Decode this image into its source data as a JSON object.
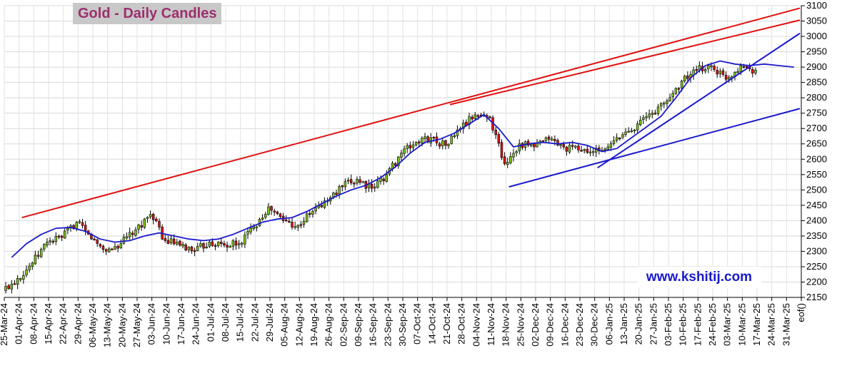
{
  "chart_data": {
    "type": "candlestick",
    "title": "Gold - Daily Candles",
    "watermark": "www.kshitij.com",
    "y_axis": {
      "position": "right",
      "min": 2150,
      "max": 3100,
      "step": 50,
      "ticks": [
        2150,
        2200,
        2250,
        2300,
        2350,
        2400,
        2450,
        2500,
        2550,
        2600,
        2650,
        2700,
        2750,
        2800,
        2850,
        2900,
        2950,
        3000,
        3050,
        3100
      ]
    },
    "x_axis": {
      "labels": [
        "25-Mar-24",
        "01-Apr-24",
        "08-Apr-24",
        "15-Apr-24",
        "22-Apr-24",
        "29-Apr-24",
        "06-May-24",
        "13-May-24",
        "20-May-24",
        "27-May-24",
        "03-Jun-24",
        "10-Jun-24",
        "17-Jun-24",
        "24-Jun-24",
        "01-Jul-24",
        "08-Jul-24",
        "15-Jul-24",
        "22-Jul-24",
        "29-Jul-24",
        "05-Aug-24",
        "12-Aug-24",
        "19-Aug-24",
        "26-Aug-24",
        "02-Sep-24",
        "09-Sep-24",
        "16-Sep-24",
        "23-Sep-24",
        "30-Sep-24",
        "07-Oct-24",
        "14-Oct-24",
        "21-Oct-24",
        "28-Oct-24",
        "04-Nov-24",
        "11-Nov-24",
        "18-Nov-24",
        "25-Nov-24",
        "02-Dec-24",
        "09-Dec-24",
        "16-Dec-24",
        "23-Dec-24",
        "30-Dec-24",
        "06-Jan-25",
        "13-Jan-25",
        "20-Jan-25",
        "27-Jan-25",
        "03-Feb-25",
        "10-Feb-25",
        "17-Feb-25",
        "24-Feb-25",
        "03-Mar-25",
        "10-Mar-25",
        "17-Mar-25",
        "24-Mar-25",
        "31-Mar-25",
        "eof()"
      ]
    },
    "grid": true,
    "weekly_closes": [
      2212,
      2262,
      2330,
      2345,
      2395,
      2340,
      2300,
      2325,
      2370,
      2420,
      2335,
      2320,
      2300,
      2330,
      2320,
      2325,
      2380,
      2445,
      2400,
      2385,
      2430,
      2465,
      2510,
      2535,
      2505,
      2550,
      2620,
      2655,
      2670,
      2645,
      2700,
      2745,
      2735,
      2585,
      2650,
      2640,
      2665,
      2640,
      2630,
      2625,
      2640,
      2680,
      2715,
      2750,
      2790,
      2855,
      2890,
      2905,
      2860,
      2905,
      2890
    ],
    "moving_average": {
      "name": "moving average",
      "color": "#1a1acc",
      "values": [
        2280,
        2325,
        2355,
        2375,
        2378,
        2365,
        2340,
        2330,
        2335,
        2350,
        2360,
        2350,
        2340,
        2335,
        2340,
        2355,
        2375,
        2395,
        2405,
        2410,
        2430,
        2455,
        2480,
        2500,
        2515,
        2540,
        2575,
        2620,
        2655,
        2665,
        2685,
        2715,
        2745,
        2700,
        2640,
        2650,
        2655,
        2650,
        2655,
        2645,
        2625,
        2635,
        2670,
        2705,
        2740,
        2800,
        2865,
        2905,
        2920,
        2910,
        2905,
        2910,
        2905,
        2900
      ]
    },
    "trendlines": [
      {
        "color": "#e01010",
        "from": [
          "01-Apr-24",
          2410
        ],
        "to": [
          "eof()",
          3092
        ]
      },
      {
        "color": "#e01010",
        "from": [
          "21-Oct-24",
          2778
        ],
        "to": [
          "eof()",
          3053
        ]
      },
      {
        "color": "#1a1acc",
        "from": [
          "18-Nov-24",
          2510
        ],
        "to": [
          "eof()",
          2765
        ]
      },
      {
        "color": "#1a1acc",
        "from": [
          "30-Dec-24",
          2572
        ],
        "to": [
          "eof()",
          3010
        ]
      }
    ],
    "colors": {
      "up_candle": "#7ec11e",
      "down_candle": "#e01010",
      "outline": "#000000"
    }
  }
}
